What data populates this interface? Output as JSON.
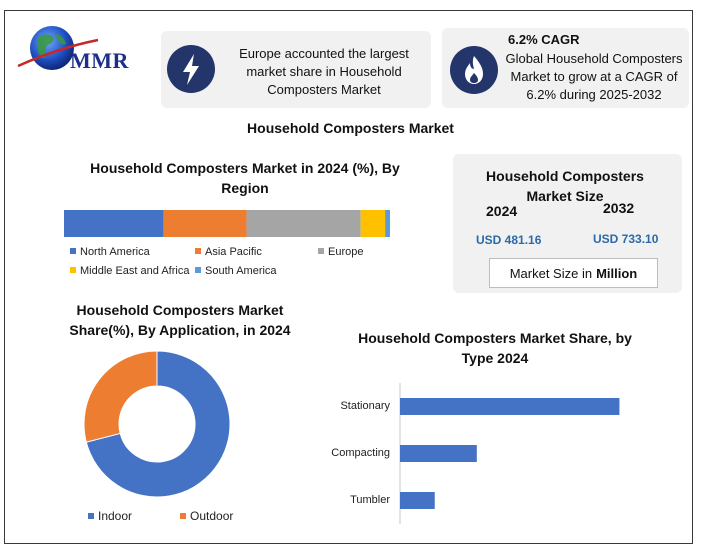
{
  "brand": {
    "logo_text": "MMR"
  },
  "highlights": {
    "region_note": "Europe accounted the largest market share in Household Composters Market",
    "cagr_heading": "6.2% CAGR",
    "cagr_note": "Global Household Composters Market to grow at a CAGR of 6.2% during 2025-2032"
  },
  "main_title": "Household Composters Market",
  "market_size": {
    "title": "Household Composters Market Size",
    "year_a": "2024",
    "year_b": "2032",
    "value_a": "USD 481.16",
    "value_b": "USD 733.10",
    "unit_prefix": "Market Size in",
    "unit_bold": "Million"
  },
  "colors": {
    "blue": "#4472c4",
    "orange": "#ed7d31",
    "gray": "#a5a5a5",
    "yellow": "#ffc000",
    "light_blue": "#5b9bd5",
    "icon_bg": "#24356b"
  },
  "icons": [
    "lightning-icon",
    "flame-icon",
    "globe-icon"
  ],
  "chart_data": [
    {
      "type": "bar",
      "stacked": true,
      "orientation": "horizontal",
      "title": "Household Composters Market in 2024 (%), By Region",
      "series": [
        {
          "name": "North America",
          "values": [
            30.5
          ]
        },
        {
          "name": "Asia Pacific",
          "values": [
            25.5
          ]
        },
        {
          "name": "Europe",
          "values": [
            35
          ]
        },
        {
          "name": "Middle East and Africa",
          "values": [
            7.5
          ]
        },
        {
          "name": "South America",
          "values": [
            1.5
          ]
        }
      ],
      "legend": "bottom"
    },
    {
      "type": "pie",
      "donut": true,
      "title": "Household Composters Market Share(%), By Application, in 2024",
      "categories": [
        "Indoor",
        "Outdoor"
      ],
      "values": [
        71,
        29
      ],
      "legend": "bottom"
    },
    {
      "type": "bar",
      "orientation": "horizontal",
      "title": "Household Composters Market Share, by Type 2024",
      "categories": [
        "Stationary",
        "Compacting",
        "Tumbler"
      ],
      "values": [
        60,
        21,
        9.5
      ],
      "xlim": [
        0,
        70
      ]
    }
  ]
}
